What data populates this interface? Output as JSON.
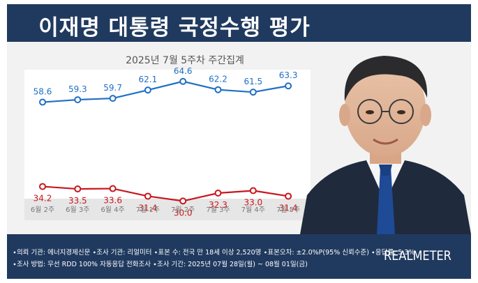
{
  "header": {
    "title": "이재명 대통령 국정수행 평가"
  },
  "colors": {
    "header_bg": "#203a5f",
    "approve": "#1f6fc5",
    "disapprove": "#c9161d"
  },
  "chart_data": {
    "type": "line",
    "subtitle": "2025년 7월 5주차 주간집계",
    "categories": [
      "6월 2주",
      "6월 3주",
      "6월 4주",
      "7월 1주",
      "7월 2주",
      "7월 3주",
      "7월 4주",
      "7월 5주"
    ],
    "series": [
      {
        "values": [
          58.6,
          59.3,
          59.7,
          62.1,
          64.6,
          62.2,
          61.5,
          63.3
        ],
        "color": "#1f6fc5"
      },
      {
        "values": [
          34.2,
          33.5,
          33.6,
          31.4,
          30.0,
          32.3,
          33.0,
          31.4
        ],
        "color": "#c9161d"
      }
    ],
    "ylim": [
      20,
      70
    ],
    "legend": "none",
    "grid": false
  },
  "footer": {
    "note1": "∙의뢰 기관: 에너지경제신문 ∙조사 기관: 리얼미터 ∙표본 수: 전국 만 18세 이상 2,520명 ∙표본오차: ±2.0%P(95% 신뢰수준) ∙응답률: 5.3%",
    "note2": "∙조사 방법: 무선 RDD 100% 자동응답 전화조사 ∙조사 기간: 2025년 07월 28일(월) ~ 08월 01일(금)",
    "brand": "REALMETER"
  },
  "portrait": {
    "icon": "person-portrait"
  }
}
